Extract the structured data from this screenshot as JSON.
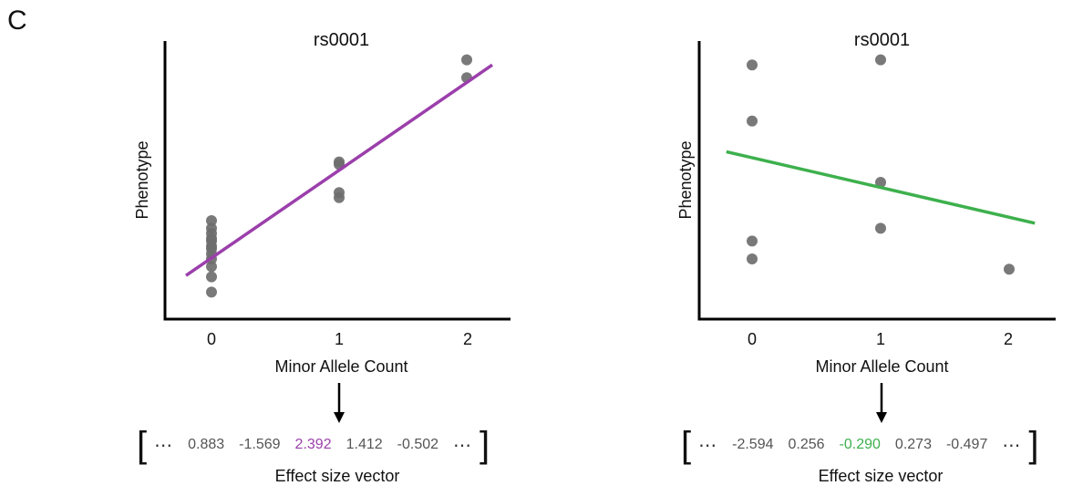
{
  "panel_letter": "C",
  "chart_data": [
    {
      "type": "scatter",
      "title": "rs0001",
      "xlabel": "Minor Allele Count",
      "ylabel": "Phenotype",
      "xticks": [
        "0",
        "1",
        "2"
      ],
      "xlim": [
        -0.35,
        2.35
      ],
      "ylim": [
        0,
        1
      ],
      "points": [
        {
          "x": 0,
          "y": 0.35
        },
        {
          "x": 0,
          "y": 0.32
        },
        {
          "x": 0,
          "y": 0.3
        },
        {
          "x": 0,
          "y": 0.28
        },
        {
          "x": 0,
          "y": 0.27
        },
        {
          "x": 0,
          "y": 0.25
        },
        {
          "x": 0,
          "y": 0.24
        },
        {
          "x": 0,
          "y": 0.22
        },
        {
          "x": 0,
          "y": 0.2
        },
        {
          "x": 0,
          "y": 0.17
        },
        {
          "x": 0,
          "y": 0.13
        },
        {
          "x": 0,
          "y": 0.07
        },
        {
          "x": 1,
          "y": 0.58
        },
        {
          "x": 1,
          "y": 0.57
        },
        {
          "x": 1,
          "y": 0.46
        },
        {
          "x": 1,
          "y": 0.44
        },
        {
          "x": 2,
          "y": 0.98
        },
        {
          "x": 2,
          "y": 0.91
        }
      ],
      "fit_line": {
        "x": [
          -0.2,
          2.2
        ],
        "y": [
          0.135,
          0.96
        ],
        "color": "#9B3FAB"
      },
      "point_color": "#6e6e6e",
      "effect_vector": {
        "values": [
          "0.883",
          "-1.569",
          "2.392",
          "1.412",
          "-0.502"
        ],
        "highlight_index": 2,
        "highlight_color": "#9B3FAB",
        "caption": "Effect size vector"
      }
    },
    {
      "type": "scatter",
      "title": "rs0001",
      "xlabel": "Minor Allele Count",
      "ylabel": "Phenotype",
      "xticks": [
        "0",
        "1",
        "2"
      ],
      "xlim": [
        -0.35,
        2.35
      ],
      "ylim": [
        0,
        1
      ],
      "points": [
        {
          "x": 0,
          "y": 0.96
        },
        {
          "x": 0,
          "y": 0.74
        },
        {
          "x": 0,
          "y": 0.27
        },
        {
          "x": 0,
          "y": 0.2
        },
        {
          "x": 1,
          "y": 0.98
        },
        {
          "x": 1,
          "y": 0.5
        },
        {
          "x": 1,
          "y": 0.32
        },
        {
          "x": 2,
          "y": 0.16
        }
      ],
      "fit_line": {
        "x": [
          -0.2,
          2.2
        ],
        "y": [
          0.62,
          0.34
        ],
        "color": "#3DB04D"
      },
      "point_color": "#6e6e6e",
      "effect_vector": {
        "values": [
          "-2.594",
          "0.256",
          "-0.290",
          "0.273",
          "-0.497"
        ],
        "highlight_index": 2,
        "highlight_color": "#3DB04D",
        "caption": "Effect size vector"
      }
    }
  ]
}
